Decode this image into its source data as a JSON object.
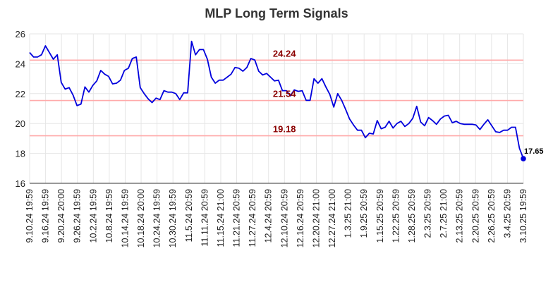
{
  "chart_data": {
    "type": "line",
    "title": "MLP Long Term Signals",
    "xlabel": "",
    "ylabel": "",
    "ylim": [
      16,
      26
    ],
    "yticks": [
      "16",
      "18",
      "20",
      "22",
      "24",
      "26"
    ],
    "x_tick_labels": [
      "9.10.24 19:59",
      "9.16.24 19:59",
      "9.20.24 20:00",
      "9.26.24 19:59",
      "10.2.24 19:59",
      "10.8.24 19:59",
      "10.14.24 19:59",
      "10.18.24 20:00",
      "10.24.24 19:59",
      "10.30.24 19:59",
      "11.5.24 20:59",
      "11.11.24 20:59",
      "11.15.24 21:00",
      "11.21.24 20:59",
      "11.27.24 20:59",
      "12.4.24 20:59",
      "12.10.24 20:59",
      "12.16.24 20:59",
      "12.20.24 21:00",
      "12.27.24 21:00",
      "1.3.25 21:00",
      "1.9.25 20:59",
      "1.15.25 20:59",
      "1.22.25 20:59",
      "1.28.25 20:59",
      "2.3.25 20:59",
      "2.7.25 21:00",
      "2.13.25 20:59",
      "2.20.25 20:59",
      "2.26.25 20:59",
      "3.4.25 20:59",
      "3.10.25 19:59"
    ],
    "grid": true,
    "series": [
      {
        "color": "#0000dd",
        "values": [
          24.75,
          24.45,
          24.45,
          24.6,
          25.2,
          24.75,
          24.3,
          24.6,
          22.75,
          22.3,
          22.4,
          21.9,
          21.2,
          21.3,
          22.45,
          22.1,
          22.55,
          22.85,
          23.55,
          23.3,
          23.15,
          22.65,
          22.7,
          22.9,
          23.55,
          23.7,
          24.35,
          24.45,
          22.4,
          22.0,
          21.65,
          21.4,
          21.7,
          21.6,
          22.2,
          22.1,
          22.1,
          22.0,
          21.6,
          22.05,
          22.05,
          25.5,
          24.6,
          24.95,
          24.95,
          24.3,
          23.1,
          22.7,
          22.9,
          22.9,
          23.1,
          23.3,
          23.75,
          23.7,
          23.5,
          23.75,
          24.35,
          24.25,
          23.5,
          23.25,
          23.35,
          23.1,
          22.85,
          22.9,
          22.2,
          22.2,
          21.85,
          22.25,
          22.15,
          22.2,
          21.55,
          21.55,
          23.0,
          22.7,
          23.0,
          22.45,
          21.95,
          21.1,
          22.0,
          21.55,
          20.95,
          20.3,
          19.9,
          19.55,
          19.55,
          19.05,
          19.35,
          19.3,
          20.2,
          19.65,
          19.75,
          20.15,
          19.7,
          20.0,
          20.15,
          19.8,
          20.0,
          20.35,
          21.15,
          20.1,
          19.85,
          20.4,
          20.2,
          19.95,
          20.3,
          20.5,
          20.55,
          20.05,
          20.15,
          20.0,
          19.95,
          19.95,
          19.95,
          19.9,
          19.6,
          19.95,
          20.25,
          19.85,
          19.45,
          19.4,
          19.55,
          19.55,
          19.75,
          19.75,
          18.35,
          17.65
        ]
      }
    ],
    "reference_lines": [
      {
        "value": 24.24,
        "label": "24.24",
        "color": "#ffaaaa",
        "label_color": "#8b0000"
      },
      {
        "value": 21.54,
        "label": "21.54",
        "color": "#ffaaaa",
        "label_color": "#8b0000"
      },
      {
        "value": 19.18,
        "label": "19.18",
        "color": "#ffaaaa",
        "label_color": "#8b0000"
      }
    ],
    "last_point_label": "17.65"
  }
}
